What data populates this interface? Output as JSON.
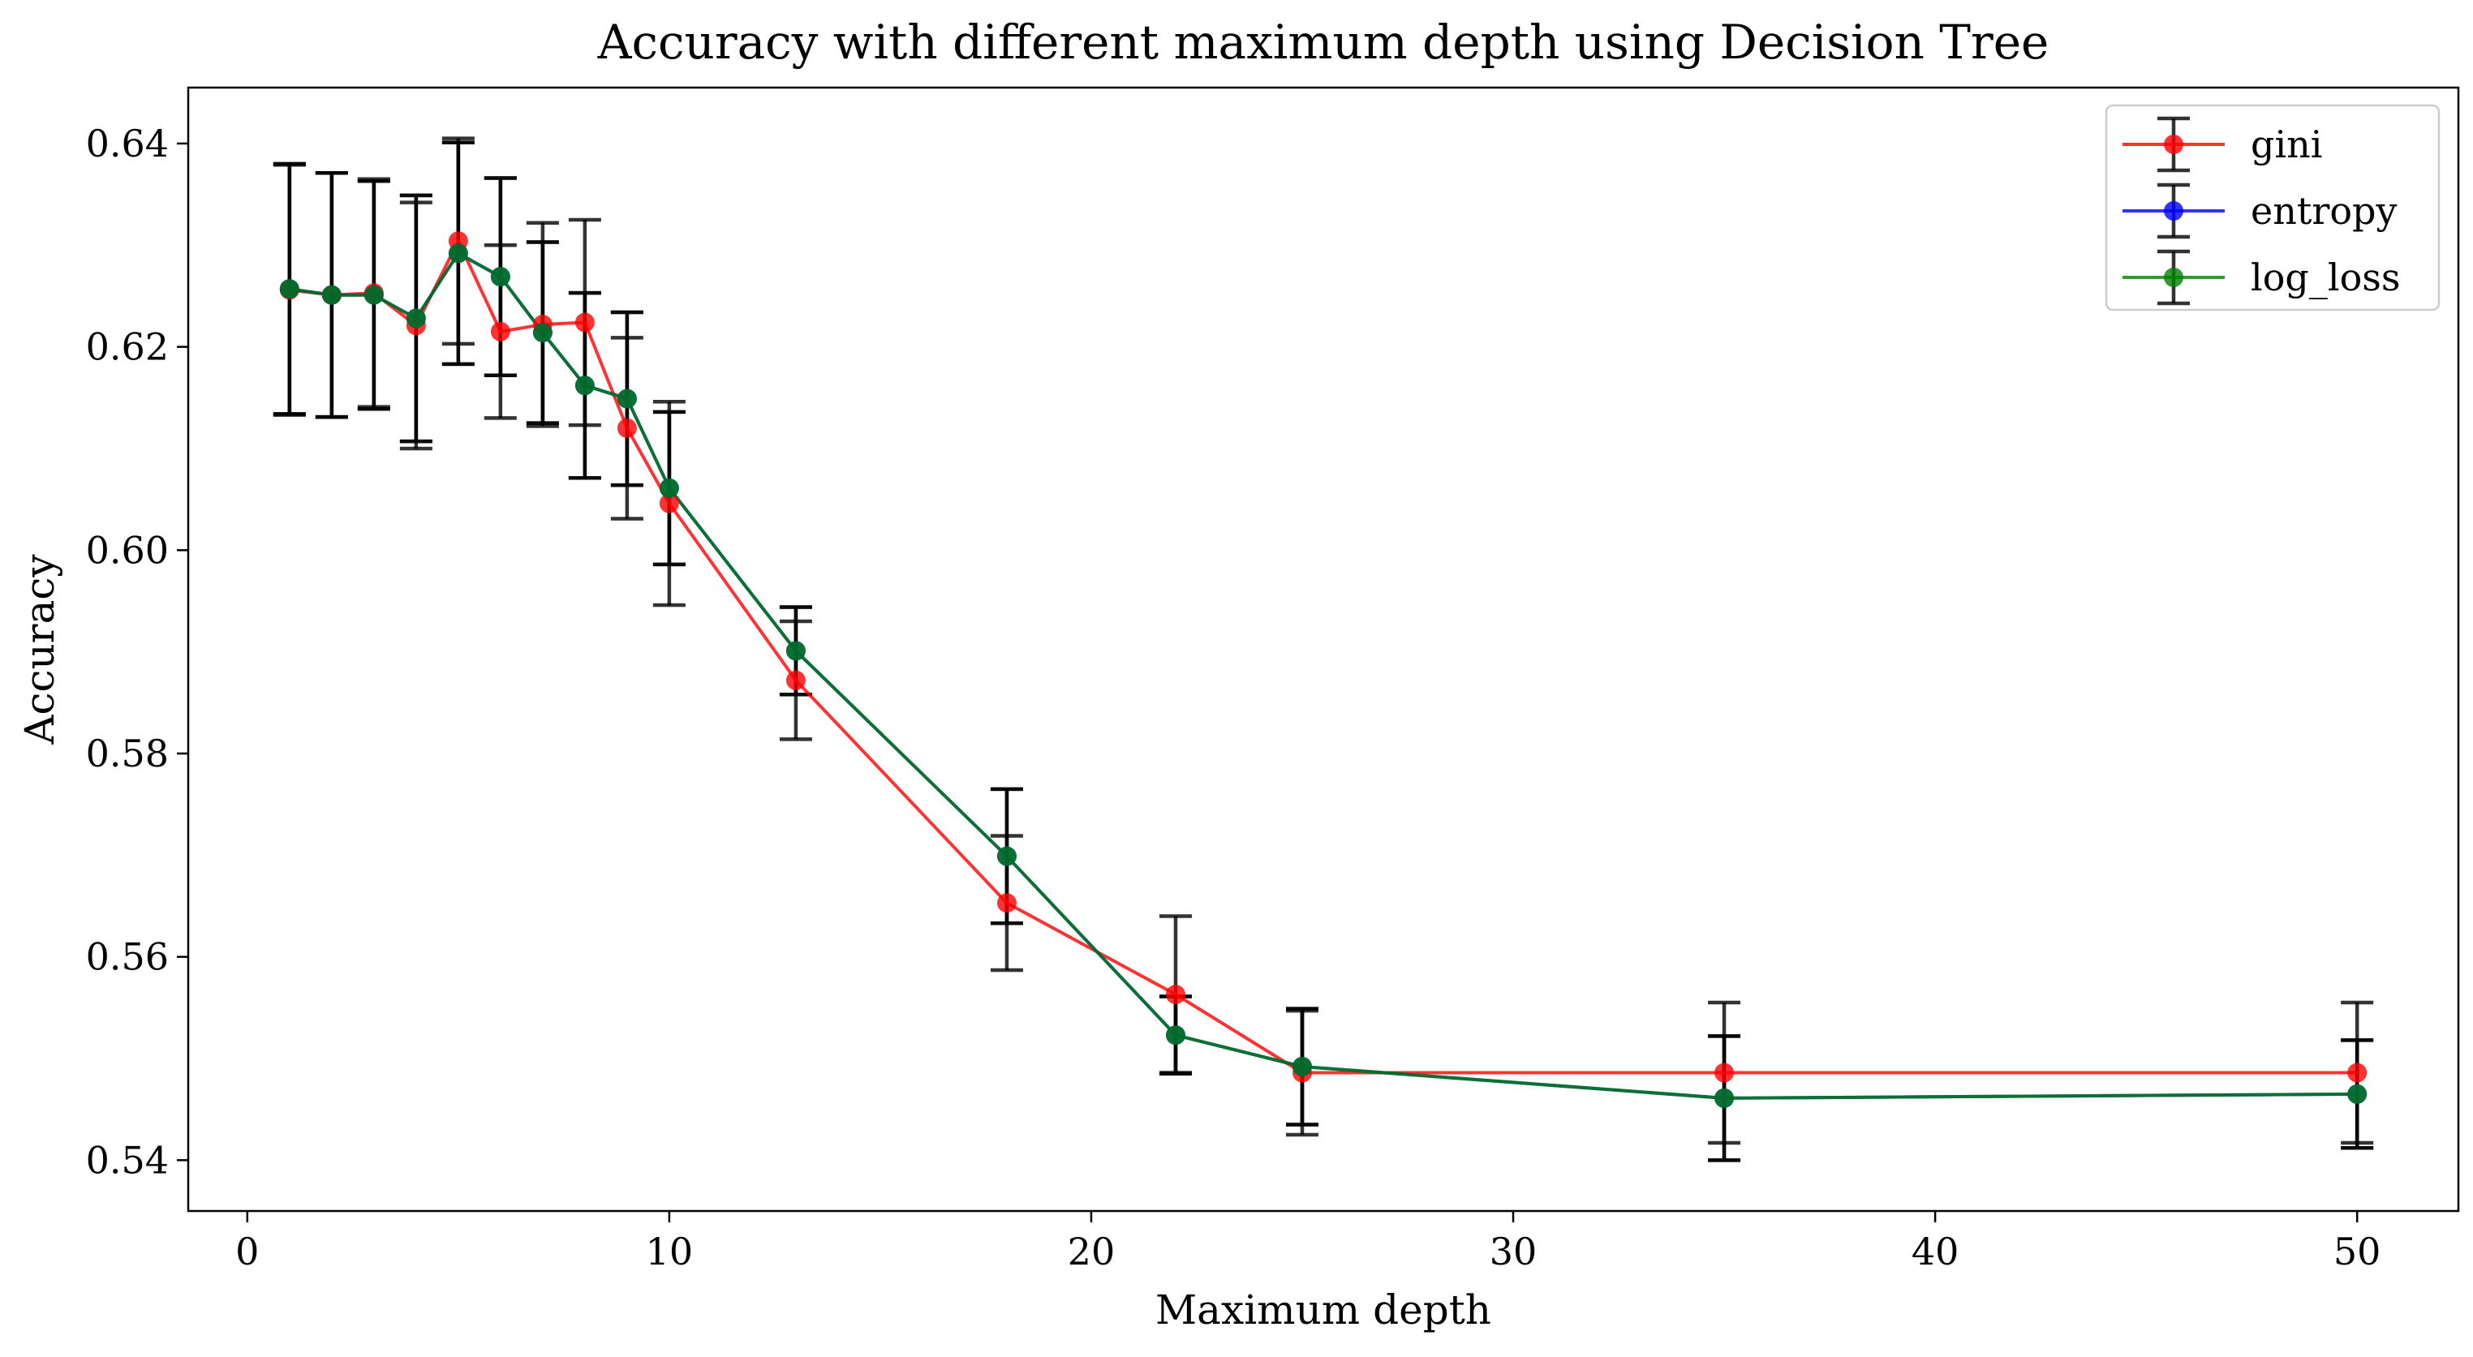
{
  "chart_data": {
    "type": "line",
    "title": "Accuracy with different maximum depth using Decision Tree",
    "xlabel": "Maximum depth",
    "ylabel": "Accuracy",
    "xlim": [
      -1.4,
      52.4
    ],
    "ylim": [
      0.535,
      0.6455
    ],
    "xticks": [
      0,
      10,
      20,
      30,
      40,
      50
    ],
    "xtick_labels": [
      "0",
      "10",
      "20",
      "30",
      "40",
      "50"
    ],
    "yticks": [
      0.54,
      0.56,
      0.58,
      0.6,
      0.62,
      0.64
    ],
    "ytick_labels": [
      "0.54",
      "0.56",
      "0.58",
      "0.60",
      "0.62",
      "0.64"
    ],
    "grid": false,
    "legend_position": "top-right",
    "errorbar_color": "#000000",
    "x": [
      1,
      2,
      3,
      4,
      5,
      6,
      7,
      8,
      9,
      10,
      13,
      18,
      22,
      25,
      35,
      50
    ],
    "series": [
      {
        "name": "gini",
        "color": "#ff0000",
        "values": [
          0.6256,
          0.6251,
          0.6253,
          0.6221,
          0.6304,
          0.6215,
          0.6222,
          0.6224,
          0.612,
          0.6046,
          0.5872,
          0.5653,
          0.5563,
          0.5486,
          0.5486,
          0.5486
        ],
        "errors": [
          0.0123,
          0.012,
          0.0112,
          0.0121,
          0.0101,
          0.0085,
          0.01,
          0.0101,
          0.0089,
          0.01,
          0.0058,
          0.0066,
          0.0077,
          0.0061,
          0.0069,
          0.0069
        ]
      },
      {
        "name": "entropy",
        "color": "#0000ff",
        "values": [
          0.6257,
          0.6251,
          0.6251,
          0.6228,
          0.6292,
          0.6269,
          0.6214,
          0.6162,
          0.6149,
          0.6061,
          0.5901,
          0.5699,
          0.5523,
          0.5492,
          0.5461,
          0.5465
        ],
        "errors": [
          0.0123,
          0.012,
          0.0112,
          0.0121,
          0.0109,
          0.0097,
          0.0089,
          0.0091,
          0.0085,
          0.0075,
          0.0043,
          0.0066,
          0.0038,
          0.0057,
          0.0061,
          0.0053
        ]
      },
      {
        "name": "log_loss",
        "color": "#008000",
        "values": [
          0.6257,
          0.6251,
          0.6251,
          0.6228,
          0.6292,
          0.6269,
          0.6214,
          0.6162,
          0.6149,
          0.6061,
          0.5901,
          0.5699,
          0.5523,
          0.5492,
          0.5461,
          0.5465
        ],
        "errors": [
          0.0123,
          0.012,
          0.0112,
          0.0121,
          0.0109,
          0.0097,
          0.0089,
          0.0091,
          0.0085,
          0.0075,
          0.0043,
          0.0066,
          0.0038,
          0.0057,
          0.0061,
          0.0053
        ]
      }
    ]
  }
}
